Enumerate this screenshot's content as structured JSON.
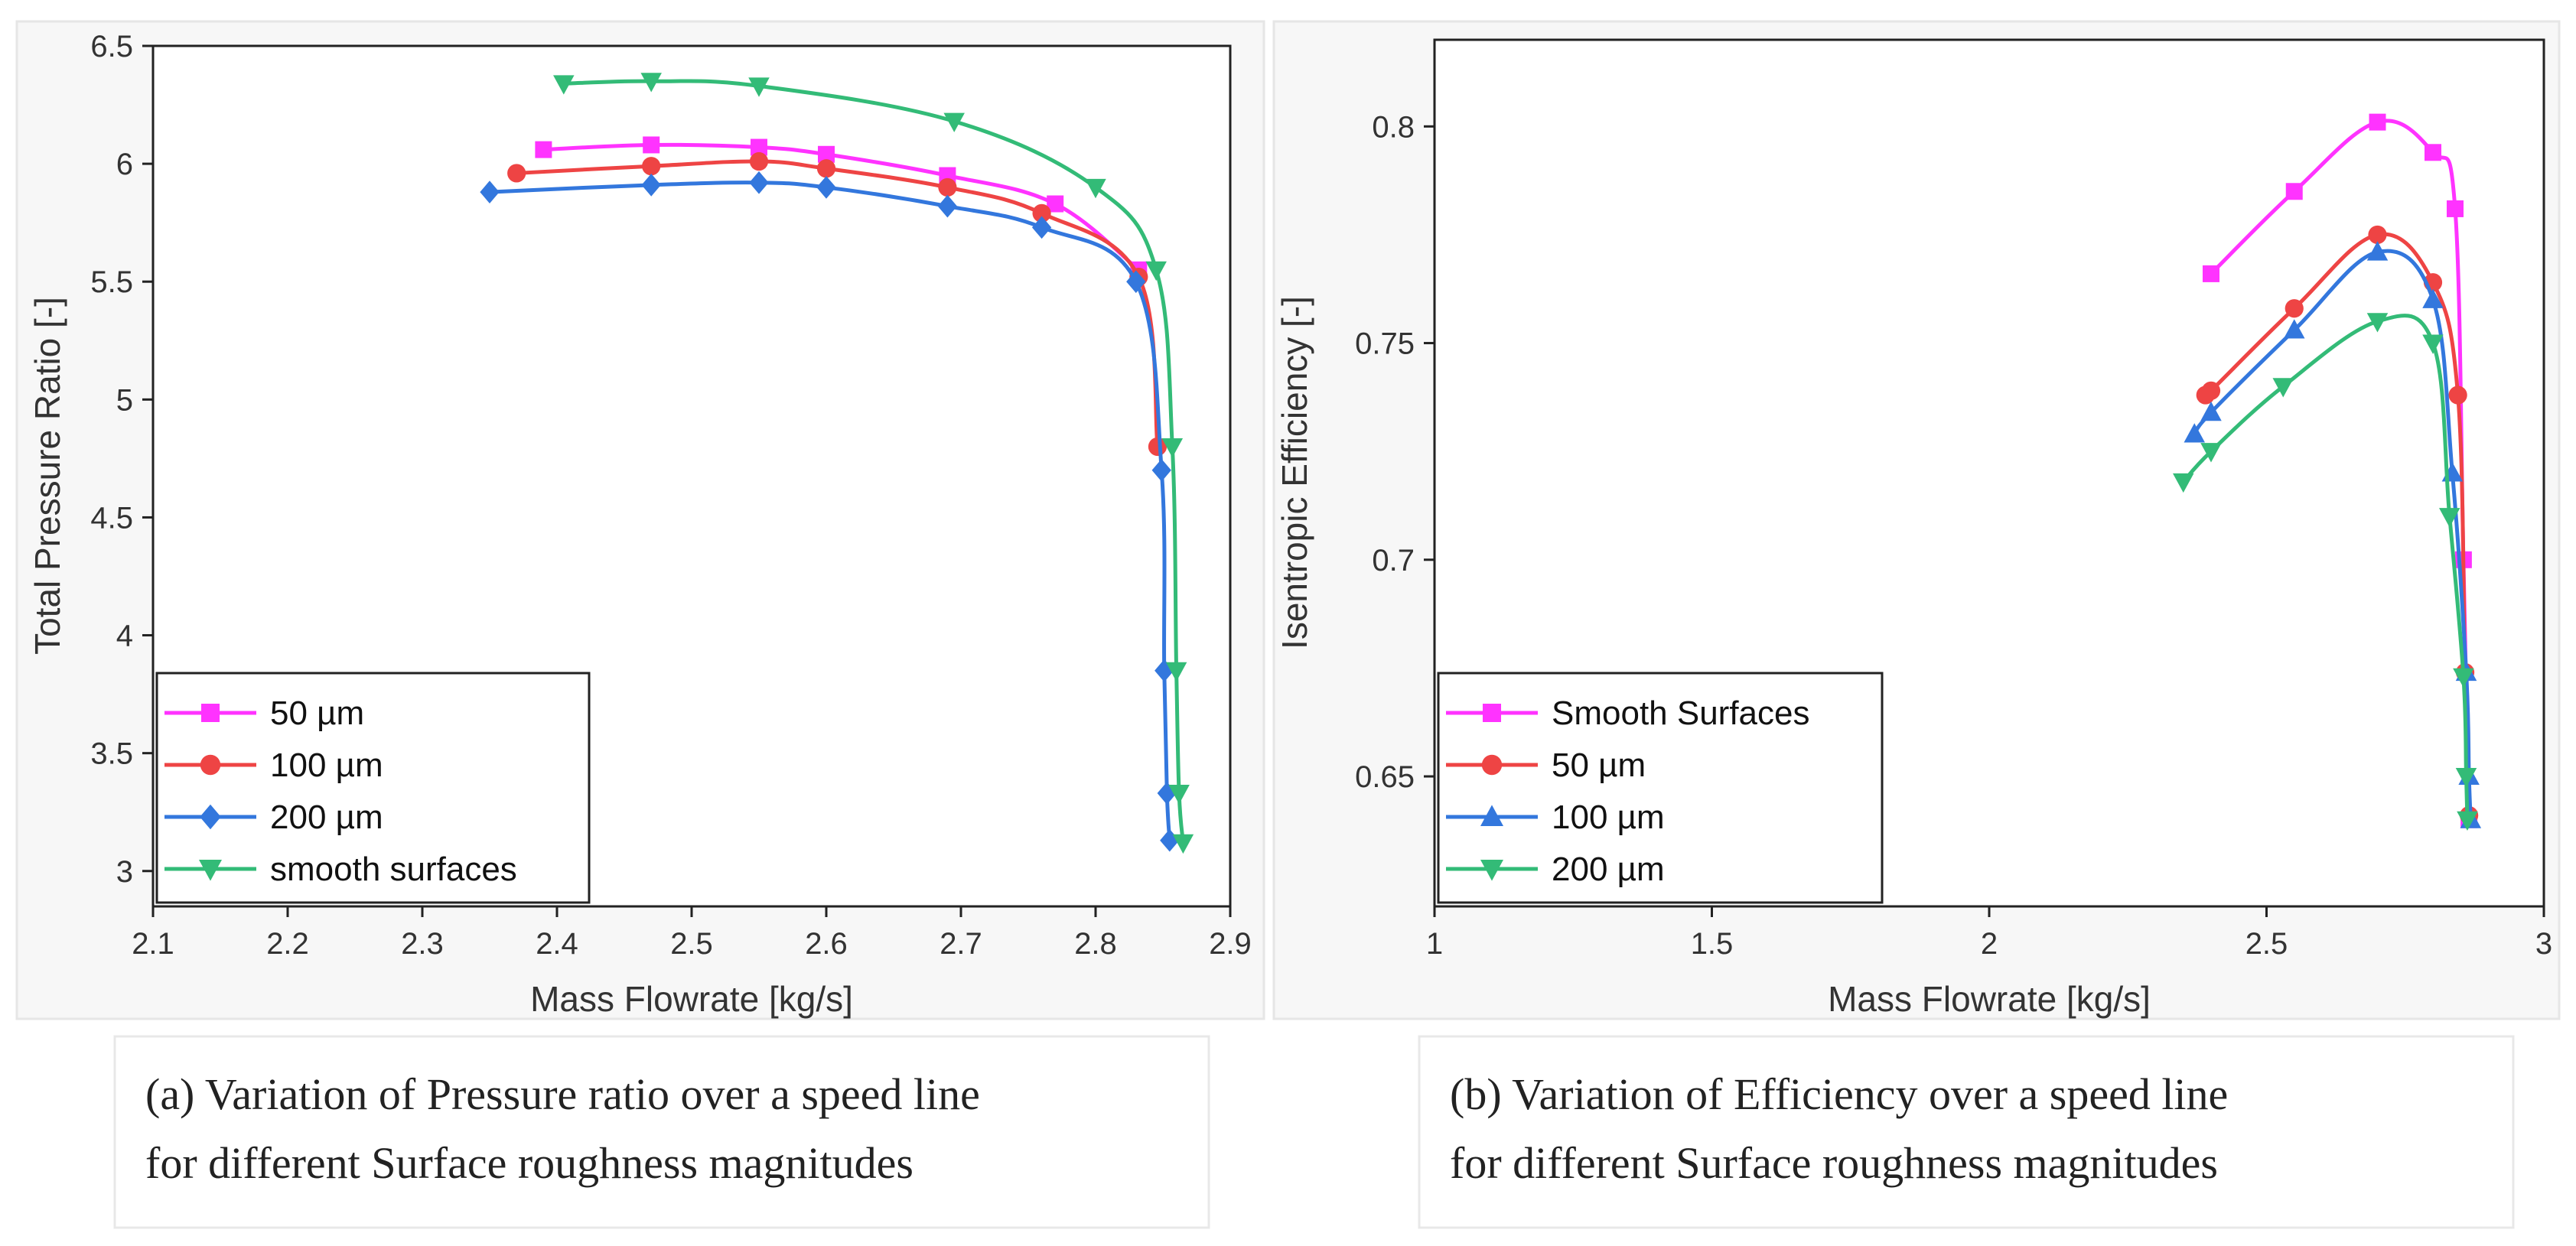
{
  "chart_data": [
    {
      "type": "line",
      "panel": "a",
      "xlabel": "Mass Flowrate [kg/s]",
      "ylabel": "Total Pressure Ratio [-]",
      "xlim": [
        2.1,
        2.9
      ],
      "ylim": [
        2.85,
        6.5
      ],
      "xticks": [
        "2.1",
        "2.2",
        "2.3",
        "2.4",
        "2.5",
        "2.6",
        "2.7",
        "2.8",
        "2.9"
      ],
      "yticks": [
        "3",
        "3.5",
        "4",
        "4.5",
        "5",
        "5.5",
        "6",
        "6.5"
      ],
      "legend_position": "bottom-left",
      "series": [
        {
          "name": "50 µm",
          "color": "#ff33ff",
          "marker": "square",
          "x": [
            2.39,
            2.47,
            2.55,
            2.6,
            2.69,
            2.77,
            2.832
          ],
          "y": [
            6.06,
            6.08,
            6.07,
            6.04,
            5.95,
            5.83,
            5.55
          ]
        },
        {
          "name": "100 µm",
          "color": "#ee4444",
          "marker": "circle",
          "x": [
            2.37,
            2.47,
            2.55,
            2.6,
            2.69,
            2.76,
            2.832,
            2.846
          ],
          "y": [
            5.96,
            5.99,
            6.01,
            5.98,
            5.9,
            5.79,
            5.52,
            4.8
          ]
        },
        {
          "name": "200 µm",
          "color": "#3377dd",
          "marker": "diamond",
          "x": [
            2.35,
            2.47,
            2.55,
            2.6,
            2.69,
            2.76,
            2.83,
            2.849,
            2.851,
            2.853,
            2.855
          ],
          "y": [
            5.88,
            5.91,
            5.92,
            5.9,
            5.82,
            5.73,
            5.5,
            4.7,
            3.85,
            3.33,
            3.13
          ]
        },
        {
          "name": "smooth surfaces",
          "color": "#33bb77",
          "marker": "triangle-down",
          "x": [
            2.405,
            2.47,
            2.55,
            2.695,
            2.8,
            2.845,
            2.857,
            2.86,
            2.862,
            2.865
          ],
          "y": [
            6.34,
            6.35,
            6.33,
            6.18,
            5.9,
            5.55,
            4.8,
            3.85,
            3.33,
            3.12
          ]
        }
      ]
    },
    {
      "type": "line",
      "panel": "b",
      "xlabel": "Mass Flowrate [kg/s]",
      "ylabel": "Isentropic Efficiency [-]",
      "xlim": [
        1,
        3
      ],
      "ylim": [
        0.62,
        0.82
      ],
      "xticks": [
        "1",
        "1.5",
        "2",
        "2.5",
        "3"
      ],
      "yticks": [
        "0.65",
        "0.7",
        "0.75",
        "0.8"
      ],
      "legend_position": "bottom-left",
      "series": [
        {
          "name": "Smooth Surfaces",
          "color": "#ff33ff",
          "marker": "square",
          "x": [
            2.4,
            2.55,
            2.7,
            2.8,
            2.84,
            2.855,
            2.865
          ],
          "y": [
            0.766,
            0.785,
            0.801,
            0.794,
            0.781,
            0.7,
            0.64
          ]
        },
        {
          "name": "50 µm",
          "color": "#ee4444",
          "marker": "circle",
          "x": [
            2.39,
            2.4,
            2.55,
            2.7,
            2.8,
            2.845,
            2.858,
            2.865
          ],
          "y": [
            0.738,
            0.739,
            0.758,
            0.775,
            0.764,
            0.738,
            0.674,
            0.641
          ]
        },
        {
          "name": "100 µm",
          "color": "#3377dd",
          "marker": "triangle-up",
          "x": [
            2.37,
            2.4,
            2.55,
            2.7,
            2.8,
            2.835,
            2.86,
            2.865,
            2.868
          ],
          "y": [
            0.729,
            0.734,
            0.753,
            0.771,
            0.76,
            0.72,
            0.674,
            0.65,
            0.64
          ]
        },
        {
          "name": "200 µm",
          "color": "#33bb77",
          "marker": "triangle-down",
          "x": [
            2.35,
            2.4,
            2.53,
            2.7,
            2.8,
            2.83,
            2.855,
            2.86,
            2.862
          ],
          "y": [
            0.718,
            0.725,
            0.74,
            0.755,
            0.75,
            0.71,
            0.673,
            0.65,
            0.64
          ]
        }
      ]
    }
  ],
  "captions": {
    "a_line1": "(a) Variation of Pressure ratio over a speed line",
    "a_line2": "for different Surface roughness magnitudes",
    "b_line1": "(b) Variation of Efficiency over a speed line",
    "b_line2": "for different Surface roughness magnitudes"
  }
}
